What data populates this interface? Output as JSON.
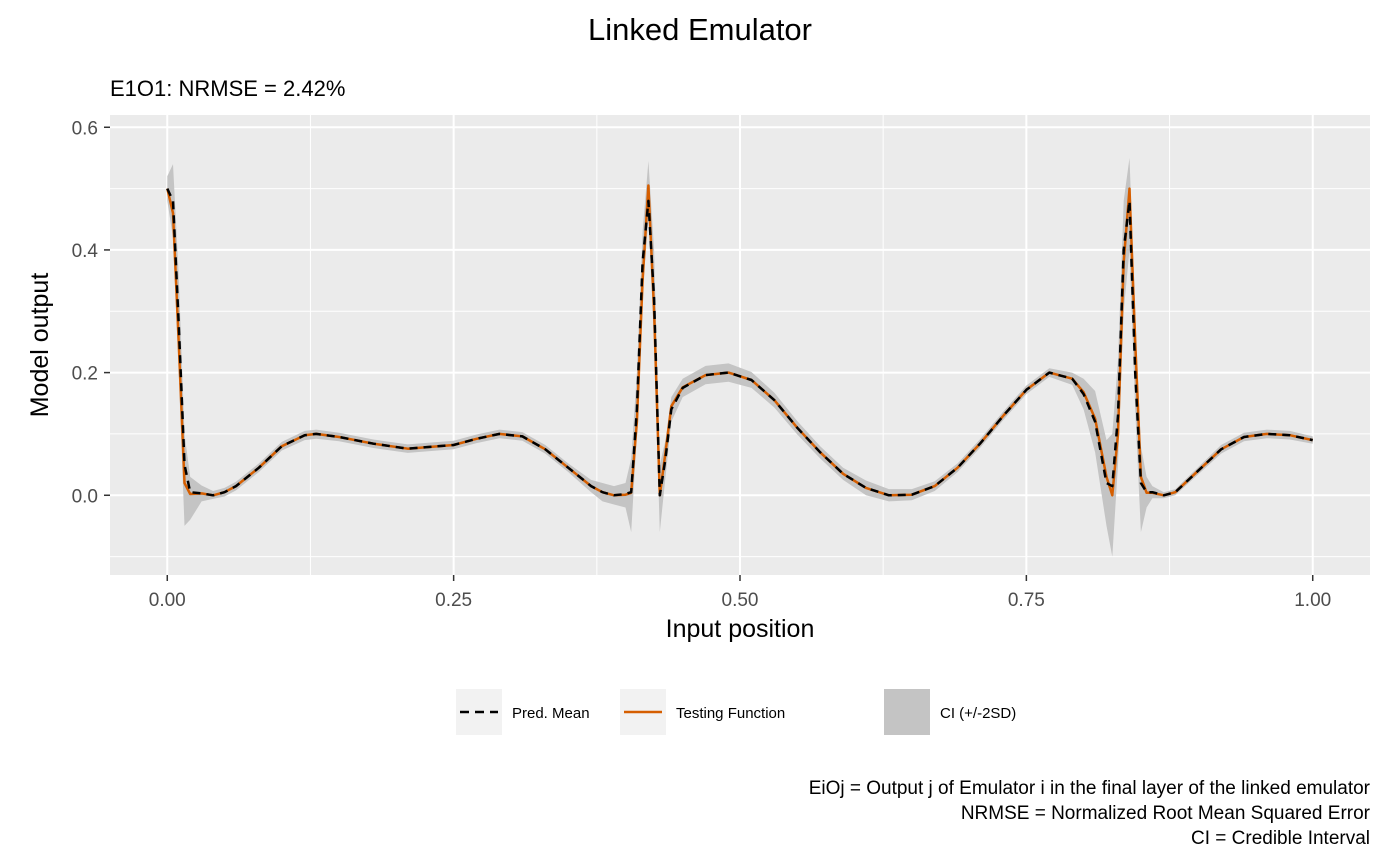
{
  "chart_data": {
    "type": "line",
    "title": "Linked Emulator",
    "subtitle": "E1O1: NRMSE = 2.42%",
    "xlabel": "Input position",
    "ylabel": "Model output",
    "xlim": [
      -0.05,
      1.05
    ],
    "ylim": [
      -0.13,
      0.62
    ],
    "x_ticks": [
      0.0,
      0.25,
      0.5,
      0.75,
      1.0
    ],
    "x_tick_labels": [
      "0.00",
      "0.25",
      "0.50",
      "0.75",
      "1.00"
    ],
    "y_ticks": [
      0.0,
      0.2,
      0.4,
      0.6
    ],
    "y_tick_labels": [
      "0.0",
      "0.2",
      "0.4",
      "0.6"
    ],
    "grid": true,
    "panel_background": "#ebebeb",
    "x": [
      0.0,
      0.005,
      0.01,
      0.015,
      0.02,
      0.03,
      0.04,
      0.05,
      0.06,
      0.08,
      0.1,
      0.12,
      0.13,
      0.15,
      0.18,
      0.21,
      0.25,
      0.27,
      0.29,
      0.31,
      0.33,
      0.35,
      0.37,
      0.38,
      0.39,
      0.4,
      0.405,
      0.41,
      0.415,
      0.42,
      0.425,
      0.43,
      0.435,
      0.44,
      0.45,
      0.47,
      0.49,
      0.51,
      0.53,
      0.55,
      0.57,
      0.59,
      0.61,
      0.63,
      0.65,
      0.67,
      0.69,
      0.71,
      0.73,
      0.75,
      0.77,
      0.79,
      0.8,
      0.81,
      0.82,
      0.825,
      0.83,
      0.835,
      0.84,
      0.845,
      0.85,
      0.855,
      0.86,
      0.87,
      0.88,
      0.9,
      0.92,
      0.94,
      0.96,
      0.98,
      1.0
    ],
    "series": [
      {
        "name": "Pred. Mean",
        "color": "#000000",
        "dash": "dashed",
        "values": [
          0.5,
          0.48,
          0.28,
          0.05,
          0.005,
          0.003,
          0.0,
          0.005,
          0.015,
          0.045,
          0.08,
          0.098,
          0.1,
          0.095,
          0.084,
          0.076,
          0.082,
          0.092,
          0.1,
          0.096,
          0.075,
          0.045,
          0.015,
          0.005,
          0.0,
          0.002,
          0.005,
          0.14,
          0.38,
          0.48,
          0.32,
          0.0,
          0.06,
          0.14,
          0.175,
          0.196,
          0.2,
          0.188,
          0.155,
          0.11,
          0.07,
          0.035,
          0.012,
          0.0,
          0.001,
          0.015,
          0.045,
          0.085,
          0.13,
          0.172,
          0.2,
          0.19,
          0.165,
          0.12,
          0.02,
          0.015,
          0.13,
          0.4,
          0.48,
          0.2,
          0.02,
          0.005,
          0.005,
          0.0,
          0.005,
          0.04,
          0.075,
          0.095,
          0.1,
          0.098,
          0.09
        ]
      },
      {
        "name": "Testing Function",
        "color": "#d55e00",
        "dash": "solid",
        "values": [
          0.5,
          0.46,
          0.25,
          0.02,
          0.002,
          0.003,
          0.0,
          0.005,
          0.015,
          0.045,
          0.08,
          0.098,
          0.1,
          0.095,
          0.084,
          0.076,
          0.082,
          0.092,
          0.1,
          0.096,
          0.075,
          0.045,
          0.015,
          0.005,
          0.0,
          0.001,
          0.004,
          0.12,
          0.35,
          0.505,
          0.3,
          0.0,
          0.07,
          0.145,
          0.176,
          0.196,
          0.2,
          0.188,
          0.155,
          0.11,
          0.07,
          0.035,
          0.012,
          0.0,
          0.001,
          0.015,
          0.045,
          0.085,
          0.13,
          0.172,
          0.2,
          0.19,
          0.168,
          0.125,
          0.03,
          0.0,
          0.1,
          0.38,
          0.5,
          0.25,
          0.03,
          0.004,
          0.004,
          0.0,
          0.005,
          0.04,
          0.075,
          0.095,
          0.1,
          0.098,
          0.09
        ]
      }
    ],
    "ci_band": {
      "name": "CI (+/-2SD)",
      "color": "#c4c4c4",
      "lower": [
        0.48,
        0.42,
        0.2,
        -0.05,
        -0.04,
        -0.01,
        -0.006,
        -0.002,
        0.008,
        0.038,
        0.073,
        0.09,
        0.092,
        0.088,
        0.077,
        0.069,
        0.075,
        0.085,
        0.093,
        0.089,
        0.068,
        0.038,
        0.005,
        -0.01,
        -0.015,
        -0.02,
        -0.06,
        0.1,
        0.33,
        0.45,
        0.25,
        -0.06,
        0.03,
        0.12,
        0.16,
        0.181,
        0.185,
        0.175,
        0.143,
        0.099,
        0.06,
        0.025,
        0.0,
        -0.01,
        -0.008,
        0.007,
        0.038,
        0.078,
        0.123,
        0.165,
        0.193,
        0.18,
        0.14,
        0.07,
        -0.05,
        -0.1,
        0.05,
        0.3,
        0.4,
        0.14,
        -0.06,
        -0.02,
        -0.005,
        -0.005,
        0.0,
        0.034,
        0.068,
        0.088,
        0.093,
        0.091,
        0.084
      ],
      "upper": [
        0.52,
        0.54,
        0.36,
        0.1,
        0.03,
        0.016,
        0.007,
        0.012,
        0.022,
        0.052,
        0.087,
        0.105,
        0.107,
        0.102,
        0.091,
        0.083,
        0.089,
        0.099,
        0.107,
        0.103,
        0.082,
        0.052,
        0.025,
        0.02,
        0.015,
        0.02,
        0.06,
        0.2,
        0.43,
        0.545,
        0.4,
        0.05,
        0.09,
        0.16,
        0.19,
        0.211,
        0.215,
        0.201,
        0.167,
        0.121,
        0.08,
        0.045,
        0.024,
        0.01,
        0.01,
        0.023,
        0.052,
        0.092,
        0.137,
        0.179,
        0.207,
        0.2,
        0.19,
        0.17,
        0.09,
        0.1,
        0.22,
        0.48,
        0.55,
        0.3,
        0.08,
        0.03,
        0.015,
        0.005,
        0.01,
        0.046,
        0.082,
        0.102,
        0.107,
        0.105,
        0.096
      ]
    },
    "legend": {
      "position": "bottom",
      "items": [
        {
          "label": "Pred. Mean",
          "kind": "dashed-line",
          "color": "#000000"
        },
        {
          "label": "Testing Function",
          "kind": "solid-line",
          "color": "#d55e00"
        },
        {
          "label": "CI (+/-2SD)",
          "kind": "fill",
          "color": "#c4c4c4"
        }
      ]
    },
    "caption": [
      "EiOj = Output j of Emulator i in the final layer of the linked emulator",
      "NRMSE = Normalized Root Mean Squared Error",
      "CI = Credible Interval"
    ]
  }
}
